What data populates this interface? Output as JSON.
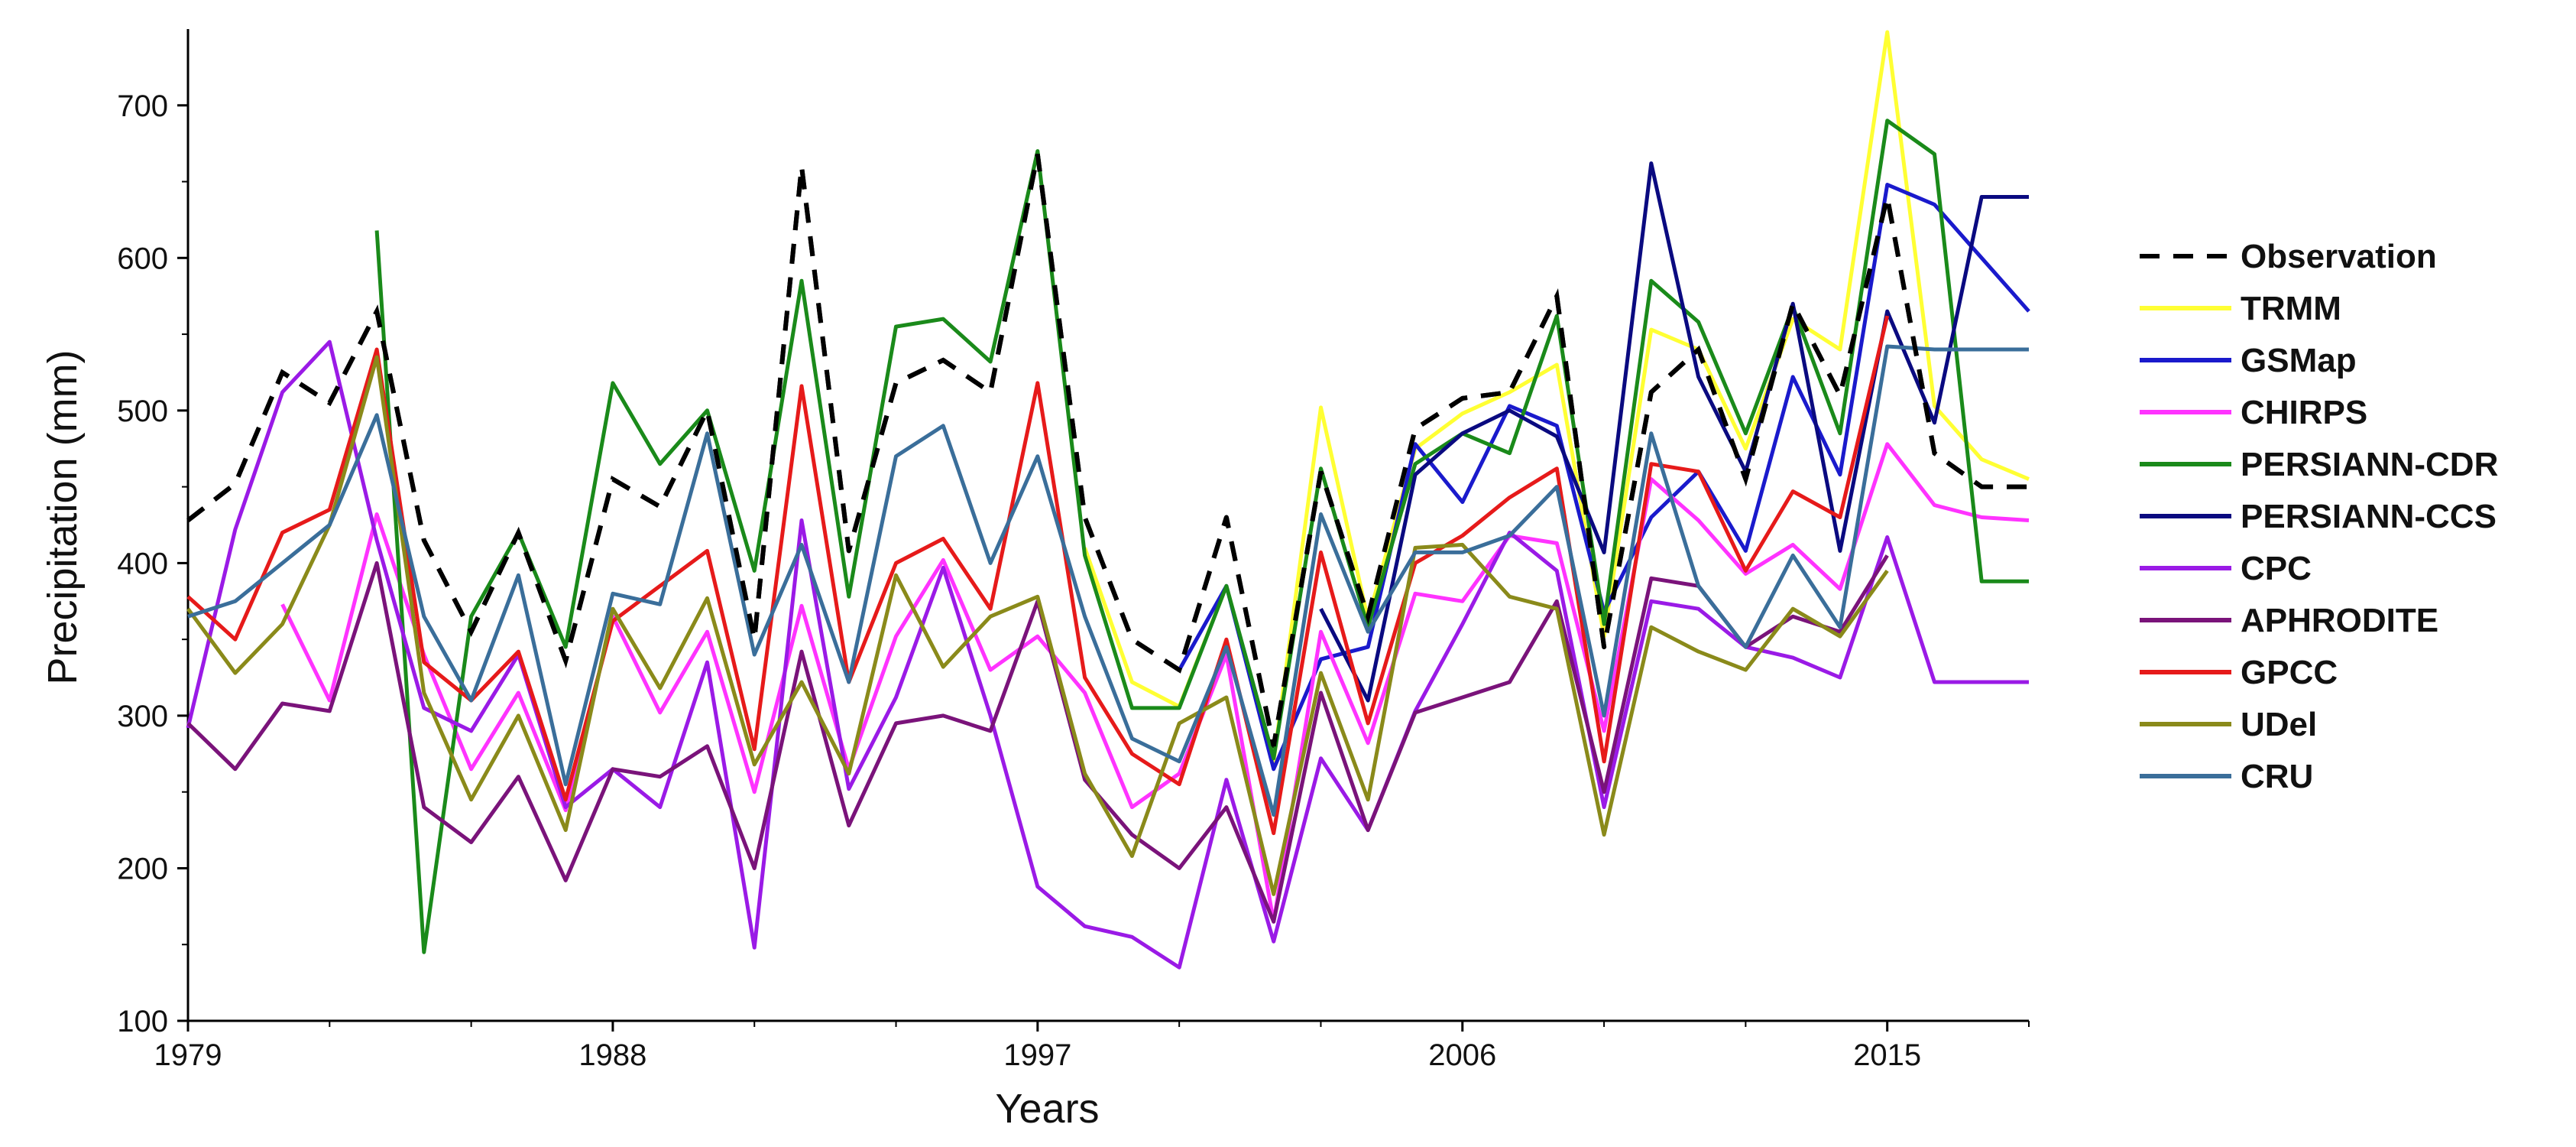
{
  "chart_data": {
    "type": "line",
    "title": "",
    "xlabel": "Years",
    "ylabel": "Precipitation (mm)",
    "xlim": [
      1979,
      2018
    ],
    "ylim": [
      100,
      750
    ],
    "x_ticks": [
      1979,
      1988,
      1997,
      2006,
      2015
    ],
    "x_minor_ticks": [
      1979,
      1982,
      1985,
      1988,
      1991,
      1994,
      1997,
      2000,
      2003,
      2006,
      2009,
      2012,
      2015,
      2018
    ],
    "y_ticks": [
      100,
      200,
      300,
      400,
      500,
      600,
      700
    ],
    "legend_position": "right",
    "series": [
      {
        "name": "Observation",
        "color": "#000000",
        "dash": true,
        "x": [
          1979,
          1980,
          1981,
          1982,
          1983,
          1984,
          1985,
          1986,
          1987,
          1988,
          1989,
          1990,
          1991,
          1992,
          1993,
          1994,
          1995,
          1996,
          1997,
          1998,
          1999,
          2000,
          2001,
          2002,
          2003,
          2004,
          2005,
          2006,
          2007,
          2008,
          2009,
          2010,
          2011,
          2012,
          2013,
          2014,
          2015,
          2016,
          2017,
          2018
        ],
        "values": [
          428,
          452,
          525,
          505,
          565,
          415,
          355,
          420,
          336,
          455,
          437,
          500,
          350,
          660,
          408,
          518,
          533,
          512,
          668,
          430,
          350,
          330,
          430,
          280,
          460,
          365,
          488,
          508,
          512,
          575,
          345,
          512,
          540,
          455,
          570,
          510,
          640,
          472,
          450,
          450
        ]
      },
      {
        "name": "TRMM",
        "color": "#ffff33",
        "dash": false,
        "x": [
          1998,
          1999,
          2000,
          2001,
          2002,
          2003,
          2004,
          2005,
          2006,
          2007,
          2008,
          2009,
          2010,
          2011,
          2012,
          2013,
          2014,
          2015,
          2016,
          2017,
          2018
        ],
        "values": [
          410,
          322,
          306,
          385,
          270,
          502,
          363,
          475,
          498,
          512,
          530,
          352,
          553,
          540,
          475,
          560,
          540,
          748,
          503,
          468,
          455
        ]
      },
      {
        "name": "GSMap",
        "color": "#1a1acc",
        "dash": false,
        "x": [
          2000,
          2001,
          2002,
          2003,
          2004,
          2005,
          2006,
          2007,
          2008,
          2009,
          2010,
          2011,
          2012,
          2013,
          2014,
          2015,
          2016,
          2017,
          2018
        ],
        "values": [
          330,
          385,
          265,
          337,
          345,
          478,
          440,
          503,
          490,
          368,
          430,
          460,
          408,
          522,
          458,
          648,
          635,
          600,
          565
        ]
      },
      {
        "name": "CHIRPS",
        "color": "#ff33ff",
        "dash": false,
        "x": [
          1981,
          1982,
          1983,
          1984,
          1985,
          1986,
          1987,
          1988,
          1989,
          1990,
          1991,
          1992,
          1993,
          1994,
          1995,
          1996,
          1997,
          1998,
          1999,
          2000,
          2001,
          2002,
          2003,
          2004,
          2005,
          2006,
          2007,
          2008,
          2009,
          2010,
          2011,
          2012,
          2013,
          2014,
          2015,
          2016,
          2017,
          2018
        ],
        "values": [
          373,
          310,
          432,
          340,
          265,
          315,
          238,
          365,
          302,
          355,
          250,
          372,
          265,
          352,
          402,
          330,
          352,
          315,
          240,
          262,
          340,
          165,
          355,
          282,
          380,
          375,
          418,
          413,
          290,
          455,
          428,
          393,
          412,
          383,
          478,
          438,
          430,
          428
        ]
      },
      {
        "name": "PERSIANN-CDR",
        "color": "#1a8a1a",
        "dash": false,
        "x": [
          1983,
          1984,
          1985,
          1986,
          1987,
          1988,
          1989,
          1990,
          1991,
          1992,
          1993,
          1994,
          1995,
          1996,
          1997,
          1998,
          1999,
          2000,
          2001,
          2002,
          2003,
          2004,
          2005,
          2006,
          2007,
          2008,
          2009,
          2010,
          2011,
          2012,
          2013,
          2014,
          2015,
          2016,
          2017,
          2018
        ],
        "values": [
          618,
          145,
          365,
          420,
          345,
          518,
          465,
          500,
          395,
          585,
          378,
          555,
          560,
          532,
          670,
          405,
          305,
          305,
          385,
          272,
          462,
          358,
          465,
          485,
          472,
          562,
          360,
          585,
          558,
          485,
          568,
          485,
          690,
          668,
          388,
          388
        ]
      },
      {
        "name": "PERSIANN-CCS",
        "color": "#0a0a80",
        "dash": false,
        "x": [
          2003,
          2004,
          2005,
          2006,
          2007,
          2008,
          2009,
          2010,
          2011,
          2012,
          2013,
          2014,
          2015,
          2016,
          2017,
          2018
        ],
        "values": [
          370,
          310,
          458,
          485,
          500,
          483,
          407,
          662,
          522,
          460,
          570,
          408,
          565,
          492,
          640,
          640
        ]
      },
      {
        "name": "CPC",
        "color": "#9a1ae6",
        "dash": false,
        "x": [
          1979,
          1980,
          1981,
          1982,
          1983,
          1984,
          1985,
          1986,
          1987,
          1988,
          1989,
          1990,
          1991,
          1992,
          1993,
          1994,
          1995,
          1996,
          1997,
          1998,
          1999,
          2000,
          2001,
          2002,
          2003,
          2004,
          2005,
          2006,
          2007,
          2008,
          2009,
          2010,
          2011,
          2012,
          2013,
          2014,
          2015,
          2016,
          2017,
          2018
        ],
        "values": [
          292,
          422,
          512,
          545,
          415,
          305,
          290,
          340,
          240,
          265,
          240,
          335,
          148,
          428,
          252,
          312,
          397,
          300,
          188,
          162,
          155,
          135,
          258,
          152,
          272,
          225,
          303,
          360,
          420,
          395,
          240,
          375,
          370,
          345,
          338,
          325,
          417,
          322,
          322,
          322
        ]
      },
      {
        "name": "APHRODITE",
        "color": "#7a137a",
        "dash": false,
        "x": [
          1979,
          1980,
          1981,
          1982,
          1983,
          1984,
          1985,
          1986,
          1987,
          1988,
          1989,
          1990,
          1991,
          1992,
          1993,
          1994,
          1995,
          1996,
          1997,
          1998,
          1999,
          2000,
          2001,
          2002,
          2003,
          2004,
          2005,
          2006,
          2007,
          2008,
          2009,
          2010,
          2011,
          2012,
          2013,
          2014,
          2015
        ],
        "values": [
          295,
          265,
          308,
          303,
          400,
          240,
          217,
          260,
          192,
          265,
          260,
          280,
          200,
          342,
          228,
          295,
          300,
          290,
          375,
          258,
          222,
          200,
          240,
          165,
          315,
          225,
          302,
          312,
          322,
          375,
          250,
          390,
          385,
          345,
          365,
          355,
          405
        ]
      },
      {
        "name": "GPCC",
        "color": "#e61a1a",
        "dash": false,
        "x": [
          1979,
          1980,
          1981,
          1982,
          1983,
          1984,
          1985,
          1986,
          1987,
          1988,
          1989,
          1990,
          1991,
          1992,
          1993,
          1994,
          1995,
          1996,
          1997,
          1998,
          1999,
          2000,
          2001,
          2002,
          2003,
          2004,
          2005,
          2006,
          2007,
          2008,
          2009,
          2010,
          2011,
          2012,
          2013,
          2014,
          2015
        ],
        "values": [
          378,
          350,
          420,
          435,
          540,
          335,
          310,
          342,
          245,
          362,
          385,
          408,
          278,
          516,
          322,
          400,
          416,
          370,
          518,
          325,
          275,
          255,
          350,
          223,
          407,
          295,
          400,
          418,
          443,
          462,
          270,
          465,
          460,
          395,
          447,
          430,
          562
        ]
      },
      {
        "name": "UDel",
        "color": "#8a8a1a",
        "dash": false,
        "x": [
          1979,
          1980,
          1981,
          1982,
          1983,
          1984,
          1985,
          1986,
          1987,
          1988,
          1989,
          1990,
          1991,
          1992,
          1993,
          1994,
          1995,
          1996,
          1997,
          1998,
          1999,
          2000,
          2001,
          2002,
          2003,
          2004,
          2005,
          2006,
          2007,
          2008,
          2009,
          2010,
          2011,
          2012,
          2013,
          2014,
          2015
        ],
        "values": [
          370,
          328,
          360,
          425,
          535,
          315,
          245,
          300,
          225,
          370,
          318,
          377,
          268,
          322,
          262,
          392,
          332,
          365,
          378,
          262,
          208,
          295,
          312,
          183,
          328,
          245,
          410,
          412,
          378,
          370,
          222,
          358,
          342,
          330,
          370,
          352,
          395
        ]
      },
      {
        "name": "CRU",
        "color": "#3a6e9a",
        "dash": false,
        "x": [
          1979,
          1980,
          1981,
          1982,
          1983,
          1984,
          1985,
          1986,
          1987,
          1988,
          1989,
          1990,
          1991,
          1992,
          1993,
          1994,
          1995,
          1996,
          1997,
          1998,
          1999,
          2000,
          2001,
          2002,
          2003,
          2004,
          2005,
          2006,
          2007,
          2008,
          2009,
          2010,
          2011,
          2012,
          2013,
          2014,
          2015,
          2016,
          2017,
          2018
        ],
        "values": [
          365,
          375,
          400,
          425,
          497,
          365,
          310,
          392,
          255,
          380,
          373,
          485,
          340,
          412,
          322,
          470,
          490,
          400,
          470,
          365,
          285,
          270,
          345,
          235,
          432,
          355,
          407,
          407,
          418,
          450,
          300,
          485,
          385,
          345,
          405,
          358,
          542,
          540,
          540,
          540
        ]
      }
    ]
  }
}
